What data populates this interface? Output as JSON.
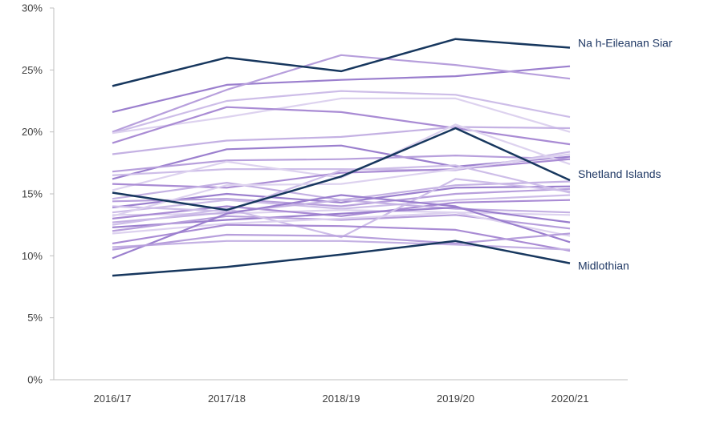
{
  "chart_data": {
    "type": "line",
    "title": "",
    "xlabel": "",
    "ylabel": "",
    "categories": [
      "2016/17",
      "2017/18",
      "2018/19",
      "2019/20",
      "2020/21"
    ],
    "y_ticks": [
      "0%",
      "5%",
      "10%",
      "15%",
      "20%",
      "25%",
      "30%"
    ],
    "ylim": [
      0,
      30
    ],
    "grid": false,
    "legend": "none",
    "colors": {
      "highlight": "#17375e",
      "background_shades": [
        "#9b7fce",
        "#b79fdc",
        "#cdbde8",
        "#ddd2ef",
        "#a98bd4",
        "#c4b1e3"
      ],
      "axis": "#bfbfbf"
    },
    "highlighted_series": [
      {
        "name": "Na h-Eileanan Siar",
        "values": [
          23.7,
          26.0,
          24.9,
          27.5,
          26.8
        ]
      },
      {
        "name": "Shetland Islands",
        "values": [
          15.1,
          13.7,
          16.4,
          20.3,
          16.1
        ]
      },
      {
        "name": "Midlothian",
        "values": [
          8.4,
          9.1,
          10.1,
          11.2,
          9.4
        ]
      }
    ],
    "background_series": [
      {
        "values": [
          21.6,
          23.8,
          24.2,
          24.5,
          25.3
        ]
      },
      {
        "values": [
          20.0,
          23.4,
          26.2,
          25.4,
          24.3
        ]
      },
      {
        "values": [
          19.9,
          22.5,
          23.3,
          23.0,
          21.2
        ]
      },
      {
        "values": [
          19.9,
          21.2,
          22.7,
          22.7,
          20.0
        ]
      },
      {
        "values": [
          19.1,
          22.0,
          21.6,
          20.3,
          19.0
        ]
      },
      {
        "values": [
          18.2,
          19.3,
          19.6,
          20.4,
          20.3
        ]
      },
      {
        "values": [
          16.2,
          18.6,
          18.9,
          17.2,
          18.0
        ]
      },
      {
        "values": [
          16.8,
          17.7,
          17.8,
          18.1,
          17.8
        ]
      },
      {
        "values": [
          16.5,
          17.0,
          17.0,
          16.9,
          18.4
        ]
      },
      {
        "values": [
          15.3,
          17.6,
          16.3,
          20.6,
          17.4
        ]
      },
      {
        "values": [
          15.8,
          15.5,
          16.7,
          17.0,
          17.8
        ]
      },
      {
        "values": [
          14.6,
          15.9,
          14.5,
          15.7,
          16.0
        ]
      },
      {
        "values": [
          13.9,
          15.0,
          14.3,
          15.5,
          15.6
        ]
      },
      {
        "values": [
          14.4,
          14.6,
          14.0,
          15.0,
          15.4
        ]
      },
      {
        "values": [
          13.5,
          14.5,
          13.8,
          14.5,
          14.9
        ]
      },
      {
        "values": [
          13.3,
          13.4,
          13.7,
          13.5,
          13.3
        ]
      },
      {
        "values": [
          13.0,
          14.0,
          13.2,
          14.3,
          14.5
        ]
      },
      {
        "values": [
          12.7,
          13.5,
          14.5,
          13.8,
          13.5
        ]
      },
      {
        "values": [
          12.3,
          12.9,
          13.4,
          13.9,
          12.7
        ]
      },
      {
        "values": [
          12.0,
          13.2,
          12.9,
          13.3,
          12.2
        ]
      },
      {
        "values": [
          12.5,
          13.8,
          11.5,
          16.2,
          15.2
        ]
      },
      {
        "values": [
          11.8,
          12.6,
          13.0,
          13.5,
          11.6
        ]
      },
      {
        "values": [
          11.0,
          12.5,
          12.4,
          12.1,
          10.4
        ]
      },
      {
        "values": [
          10.7,
          11.2,
          11.2,
          10.9,
          10.5
        ]
      },
      {
        "values": [
          9.8,
          13.4,
          14.9,
          14.0,
          11.1
        ]
      },
      {
        "values": [
          10.5,
          11.7,
          11.6,
          11.0,
          11.8
        ]
      },
      {
        "values": [
          14.0,
          13.6,
          16.9,
          17.3,
          15.1
        ]
      },
      {
        "values": [
          13.2,
          15.7,
          15.8,
          17.0,
          18.2
        ]
      }
    ]
  }
}
